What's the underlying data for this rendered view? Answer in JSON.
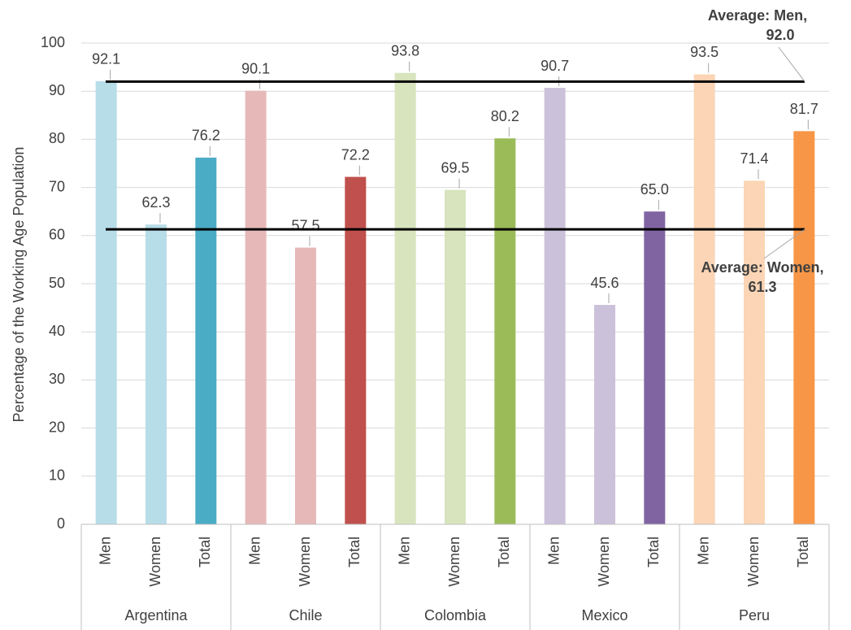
{
  "chart_data": {
    "type": "bar",
    "y_label": "Percentage of the Working Age Population",
    "group_labels": [
      "Argentina",
      "Chile",
      "Colombia",
      "Mexico",
      "Peru"
    ],
    "categories": [
      "Men",
      "Women",
      "Total",
      "Men",
      "Women",
      "Total",
      "Men",
      "Women",
      "Total",
      "Men",
      "Women",
      "Total",
      "Men",
      "Women",
      "Total"
    ],
    "values": [
      92.1,
      62.3,
      76.2,
      90.1,
      57.5,
      72.2,
      93.8,
      69.5,
      80.2,
      90.7,
      45.6,
      65.0,
      93.5,
      71.4,
      81.7
    ],
    "value_labels": [
      "92.1",
      "62.3",
      "76.2",
      "90.1",
      "57.5",
      "72.2",
      "93.8",
      "69.5",
      "80.2",
      "90.7",
      "45.6",
      "65.0",
      "93.5",
      "71.4",
      "81.7"
    ],
    "colors": [
      "#b7dde8",
      "#b7dde8",
      "#4bacc6",
      "#e6b9b8",
      "#e6b9b8",
      "#c0504d",
      "#d7e4bd",
      "#d7e4bd",
      "#9bbb59",
      "#ccc1da",
      "#ccc1da",
      "#8064a2",
      "#fbd5b5",
      "#fbd5b5",
      "#f79646"
    ],
    "reference_lines": [
      {
        "label": "Average: Men,",
        "value": 92.0,
        "value_label": "92.0"
      },
      {
        "label": "Average: Women,",
        "value": 61.3,
        "value_label": "61.3"
      }
    ],
    "ylim": [
      0,
      100
    ],
    "yticks": [
      0,
      10,
      20,
      30,
      40,
      50,
      60,
      70,
      80,
      90,
      100
    ],
    "grid": true
  }
}
